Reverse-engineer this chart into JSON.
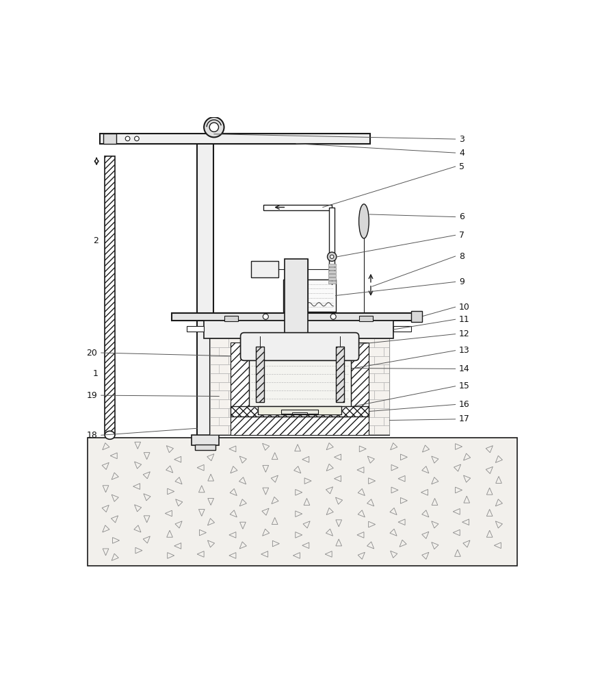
{
  "bg_color": "#ffffff",
  "line_color": "#1a1a1a",
  "label_color": "#111111",
  "brick_color": "#f5f2ee",
  "concrete_color": "#f2f0ec",
  "figsize": [
    8.62,
    10.0
  ],
  "dpi": 100,
  "label_specs_right": [
    [
      "3",
      0.048
    ],
    [
      "4",
      0.075
    ],
    [
      "5",
      0.108
    ],
    [
      "6",
      0.22
    ],
    [
      "7",
      0.26
    ],
    [
      "8",
      0.305
    ],
    [
      "9",
      0.36
    ],
    [
      "10",
      0.415
    ],
    [
      "11",
      0.44
    ],
    [
      "12",
      0.475
    ],
    [
      "13",
      0.51
    ],
    [
      "14",
      0.55
    ],
    [
      "15",
      0.59
    ],
    [
      "16",
      0.63
    ],
    [
      "17",
      0.66
    ]
  ],
  "label_specs_left": [
    [
      "20",
      0.52
    ],
    [
      "19",
      0.608
    ],
    [
      "18",
      0.695
    ],
    [
      "1",
      0.52
    ],
    [
      "2",
      0.26
    ]
  ]
}
